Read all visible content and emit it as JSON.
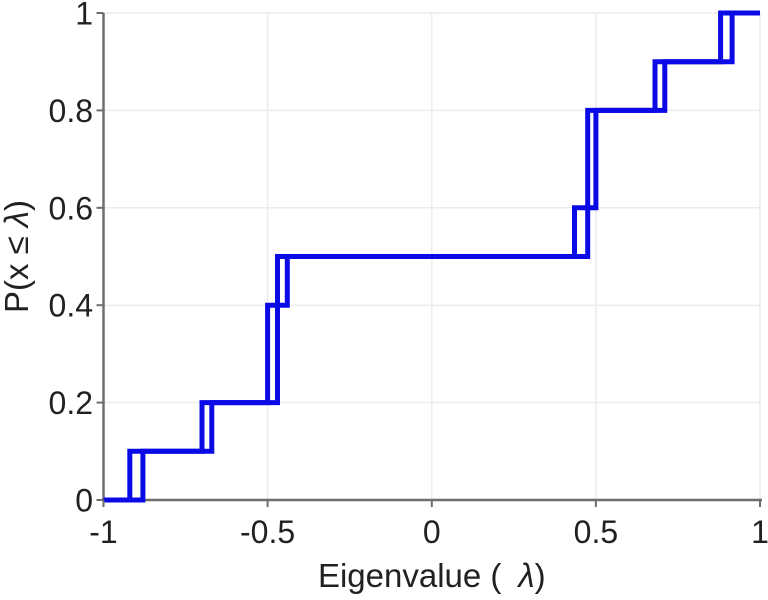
{
  "colors": {
    "line": "#0a0ae6",
    "axis": "#6e6e6e",
    "grid": "#ececec",
    "text": "#212121",
    "background": "#ffffff"
  },
  "chart_data": {
    "type": "step",
    "subtype": "empirical-cdf",
    "title": "",
    "xlabel": "Eigenvalue ( λ)",
    "ylabel": "P(x ≤ λ)",
    "xlim": [
      -1,
      1
    ],
    "ylim": [
      0,
      1
    ],
    "x_ticks": {
      "values": [
        -1,
        -0.5,
        0,
        0.5,
        1
      ],
      "labels": [
        "-1",
        "-0.5",
        "0",
        "0.5",
        "1"
      ]
    },
    "y_ticks": {
      "values": [
        0,
        0.2,
        0.4,
        0.6,
        0.8,
        1
      ],
      "labels": [
        "0",
        "0.2",
        "0.4",
        "0.6",
        "0.8",
        "1"
      ]
    },
    "grid": true,
    "legend": {
      "visible": false
    },
    "series": [
      {
        "name": "ecdf-curve-1",
        "color": "#0a0ae6",
        "eigenvalues": [
          -0.92,
          -0.7,
          -0.5,
          -0.5,
          -0.47,
          0.435,
          0.475,
          0.475,
          0.68,
          0.88
        ],
        "cumulative_probabilities": [
          0.1,
          0.2,
          0.3,
          0.4,
          0.5,
          0.6,
          0.7,
          0.8,
          0.9,
          1.0
        ]
      },
      {
        "name": "ecdf-curve-2",
        "color": "#0a0ae6",
        "eigenvalues": [
          -0.88,
          -0.67,
          -0.47,
          -0.47,
          -0.44,
          0.475,
          0.5,
          0.5,
          0.71,
          0.915
        ],
        "cumulative_probabilities": [
          0.1,
          0.2,
          0.3,
          0.4,
          0.5,
          0.6,
          0.7,
          0.8,
          0.9,
          1.0
        ]
      }
    ]
  }
}
